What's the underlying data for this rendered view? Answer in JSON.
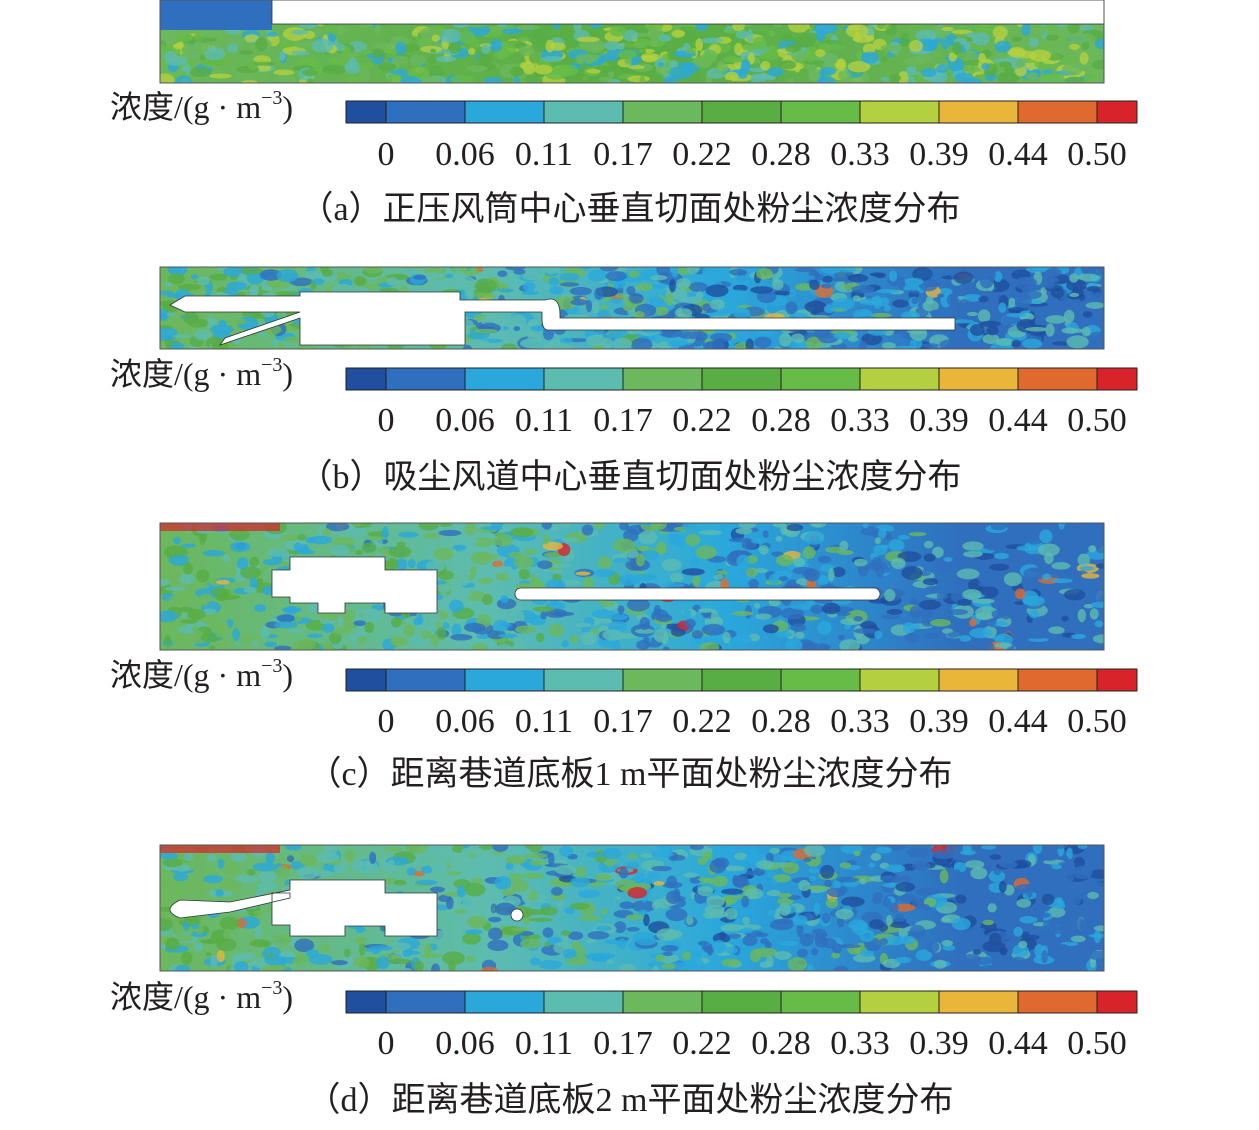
{
  "colorbar": {
    "label": "浓度/(g · m",
    "label_sup": "−3",
    "label_end": ")",
    "colors": [
      "#1f4f9e",
      "#2f6fbe",
      "#2aa8dc",
      "#5cbcb0",
      "#6cb85c",
      "#58ad43",
      "#67bb47",
      "#b4cf3f",
      "#e9b63a",
      "#e06a2d",
      "#d9232b"
    ],
    "ticks": [
      0,
      0.06,
      0.11,
      0.17,
      0.22,
      0.28,
      0.33,
      0.39,
      0.44,
      {
        "value": 0.5,
        "label": "0.50"
      }
    ]
  },
  "panels": [
    {
      "caption": "（a）正压风筒中心垂直切面处粉尘浓度分布"
    },
    {
      "caption": "（b）吸尘风道中心垂直切面处粉尘浓度分布"
    },
    {
      "caption": "（c）距离巷道底板1 m平面处粉尘浓度分布"
    },
    {
      "caption": "（d）距离巷道底板2 m平面处粉尘浓度分布"
    }
  ]
}
